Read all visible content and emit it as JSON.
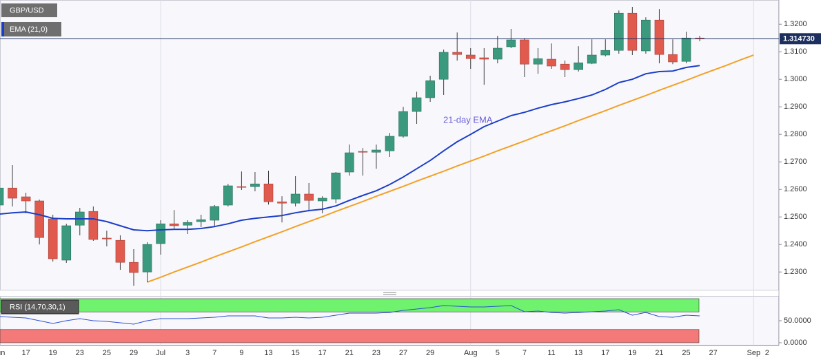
{
  "chart_data": [
    {
      "type": "candlestick",
      "title": "GBP/USD",
      "categories": [
        "Jun",
        null,
        "17",
        null,
        "19",
        null,
        "23",
        null,
        "25",
        null,
        "29",
        null,
        "Jul",
        null,
        "3",
        null,
        "7",
        null,
        "9",
        null,
        "13",
        null,
        "15",
        null,
        "17",
        null,
        "21",
        null,
        "23",
        null,
        "27",
        null,
        "29",
        null,
        null,
        "Aug",
        null,
        "5",
        null,
        "7",
        null,
        "11",
        null,
        "13",
        null,
        "17",
        null,
        "19",
        null,
        "21",
        null,
        "25",
        null,
        "27",
        null,
        null,
        "Sep",
        "2"
      ],
      "open": [
        1.2543,
        1.2605,
        1.2573,
        1.2558,
        1.2493,
        1.2343,
        1.247,
        1.252,
        1.2423,
        1.2415,
        1.2335,
        1.23,
        1.2403,
        1.2475,
        1.247,
        1.2483,
        1.2488,
        1.2543,
        1.261,
        1.261,
        1.262,
        1.2555,
        1.255,
        1.2583,
        1.2558,
        1.2565,
        1.2663,
        1.2738,
        1.2735,
        1.274,
        1.2793,
        1.2883,
        1.2933,
        1.3,
        1.3098,
        1.3088,
        1.3078,
        1.3073,
        1.3118,
        1.3143,
        1.3055,
        1.3073,
        1.3055,
        1.3035,
        1.3058,
        1.3088,
        1.3105,
        1.324,
        1.3103,
        1.3215,
        1.309,
        1.3065,
        1.315,
        null,
        null,
        null,
        null,
        null
      ],
      "high": [
        1.261,
        1.2688,
        1.2588,
        1.2563,
        1.2508,
        1.2475,
        1.2533,
        1.2538,
        1.245,
        1.2433,
        1.2383,
        1.2408,
        1.2488,
        1.2525,
        1.2488,
        1.2508,
        1.2543,
        1.262,
        1.2665,
        1.2663,
        1.2668,
        1.2575,
        1.2648,
        1.2623,
        1.2575,
        1.2663,
        1.2763,
        1.275,
        1.2763,
        1.2805,
        1.29,
        1.2955,
        1.3013,
        1.3108,
        1.317,
        1.3113,
        1.3113,
        1.3158,
        1.3183,
        1.315,
        1.3113,
        1.313,
        1.3068,
        1.312,
        1.3145,
        1.3145,
        1.325,
        1.3263,
        1.3225,
        1.3255,
        1.3145,
        1.3173,
        1.3158,
        null,
        null,
        null,
        null,
        null
      ],
      "low": [
        1.2463,
        1.2538,
        1.2513,
        1.24,
        1.2338,
        1.2333,
        1.2433,
        1.2413,
        1.2393,
        1.2308,
        1.225,
        1.2263,
        1.2363,
        1.2455,
        1.2438,
        1.2463,
        1.2463,
        1.2538,
        1.2598,
        1.2593,
        1.2545,
        1.248,
        1.2538,
        1.252,
        1.2513,
        1.255,
        1.265,
        1.265,
        1.2675,
        1.2718,
        1.2788,
        1.2838,
        1.2918,
        1.2943,
        1.3068,
        1.3038,
        1.298,
        1.3058,
        1.3113,
        1.3008,
        1.302,
        1.3038,
        1.3008,
        1.3028,
        1.3055,
        1.3083,
        1.3093,
        1.3088,
        1.3093,
        1.3058,
        1.3055,
        1.3058,
        1.3138,
        null,
        null,
        null,
        null,
        null
      ],
      "close": [
        1.2605,
        1.2568,
        1.2558,
        1.2425,
        1.2348,
        1.2468,
        1.2518,
        1.2418,
        1.242,
        1.2335,
        1.2298,
        1.24,
        1.2475,
        1.2468,
        1.248,
        1.249,
        1.2538,
        1.2613,
        1.2608,
        1.262,
        1.2555,
        1.255,
        1.2583,
        1.256,
        1.2568,
        1.266,
        1.2733,
        1.2735,
        1.2743,
        1.2793,
        1.2883,
        1.2933,
        1.2995,
        1.3098,
        1.309,
        1.3075,
        1.3073,
        1.3113,
        1.3143,
        1.3055,
        1.3075,
        1.3048,
        1.3035,
        1.306,
        1.3088,
        1.3105,
        1.324,
        1.3105,
        1.3215,
        1.309,
        1.3063,
        1.315,
        1.3147,
        null,
        null,
        null,
        null,
        null
      ],
      "up_color": "#3b9a7e",
      "down_color": "#e05a4e",
      "wick_color": "#3c3c3c",
      "series": [
        {
          "name": "EMA (21,0)",
          "color": "#1b3ec8",
          "values": [
            1.251,
            1.2515,
            1.2518,
            1.2508,
            1.2495,
            1.2493,
            1.2493,
            1.2493,
            1.2483,
            1.2468,
            1.2453,
            1.245,
            1.2453,
            1.2455,
            1.2455,
            1.2458,
            1.2465,
            1.2475,
            1.2488,
            1.2495,
            1.25,
            1.2505,
            1.2515,
            1.2523,
            1.2528,
            1.254,
            1.256,
            1.2578,
            1.2595,
            1.2618,
            1.2645,
            1.2675,
            1.2705,
            1.274,
            1.2773,
            1.28,
            1.2828,
            1.2848,
            1.2868,
            1.288,
            1.2895,
            1.2908,
            1.2918,
            1.293,
            1.2943,
            1.2963,
            1.2988,
            1.3,
            1.302,
            1.3028,
            1.303,
            1.3043,
            1.305,
            null,
            null,
            null,
            null,
            null
          ]
        }
      ],
      "trend_line": {
        "color": "#f2a227",
        "values": [
          null,
          null,
          null,
          null,
          null,
          null,
          null,
          null,
          null,
          null,
          null,
          1.2263,
          1.2281,
          1.23,
          1.2318,
          1.2336,
          1.2355,
          1.2373,
          1.2391,
          1.241,
          1.2428,
          1.2446,
          1.2465,
          1.2483,
          1.2501,
          1.252,
          1.2538,
          1.2556,
          1.2575,
          1.2593,
          1.2611,
          1.263,
          1.2648,
          1.2666,
          1.2685,
          1.2703,
          1.2721,
          1.274,
          1.2758,
          1.2776,
          1.2795,
          1.2813,
          1.2831,
          1.285,
          1.2868,
          1.2886,
          1.2905,
          1.2923,
          1.2941,
          1.296,
          1.2978,
          1.2996,
          1.3015,
          1.3033,
          1.3051,
          1.307,
          1.3088,
          null
        ]
      },
      "annotations": [
        {
          "text": "21-day EMA",
          "color": "#6a5fd6"
        }
      ],
      "last_price": {
        "value": 1.31473,
        "label": "1.314730",
        "color": "#1c2f5e"
      },
      "ylim": [
        1.2238,
        1.3288
      ],
      "yticks": [
        {
          "value": 1.23,
          "label": "1.2300"
        },
        {
          "value": 1.24,
          "label": "1.2400"
        },
        {
          "value": 1.25,
          "label": "1.2500"
        },
        {
          "value": 1.26,
          "label": "1.2600"
        },
        {
          "value": 1.27,
          "label": "1.2700"
        },
        {
          "value": 1.28,
          "label": "1.2800"
        },
        {
          "value": 1.29,
          "label": "1.2900"
        },
        {
          "value": 1.3,
          "label": "1.3000"
        },
        {
          "value": 1.31,
          "label": "1.3100"
        },
        {
          "value": 1.32,
          "label": "1.3200"
        }
      ]
    },
    {
      "type": "line",
      "title": "RSI (14,70,30,1)",
      "series": [
        {
          "color": "#2a4fd0",
          "values": [
            59.4,
            57.8,
            56.3,
            50.0,
            43.8,
            50.0,
            54.7,
            50.0,
            48.4,
            45.3,
            42.2,
            50.0,
            54.7,
            54.7,
            54.7,
            56.3,
            57.8,
            60.9,
            60.9,
            60.9,
            56.3,
            56.3,
            57.8,
            56.3,
            57.8,
            62.5,
            67.2,
            67.2,
            67.2,
            68.8,
            73.4,
            76.6,
            79.7,
            84.4,
            82.8,
            81.3,
            81.3,
            82.8,
            84.4,
            70.3,
            71.9,
            68.8,
            67.2,
            68.8,
            70.3,
            71.9,
            75.0,
            62.5,
            68.8,
            59.4,
            57.8,
            62.5,
            60.9,
            null,
            null,
            null,
            null,
            null
          ]
        }
      ],
      "bands": [
        {
          "from": 70,
          "to": 100,
          "color": "#6ff36f"
        },
        {
          "from": 0,
          "to": 30,
          "color": "#f47a7a"
        }
      ],
      "ylim": [
        0,
        100
      ],
      "yticks": [
        {
          "value": 50,
          "label": "50.0000"
        },
        {
          "value": 0,
          "label": "0.0000"
        }
      ]
    }
  ]
}
